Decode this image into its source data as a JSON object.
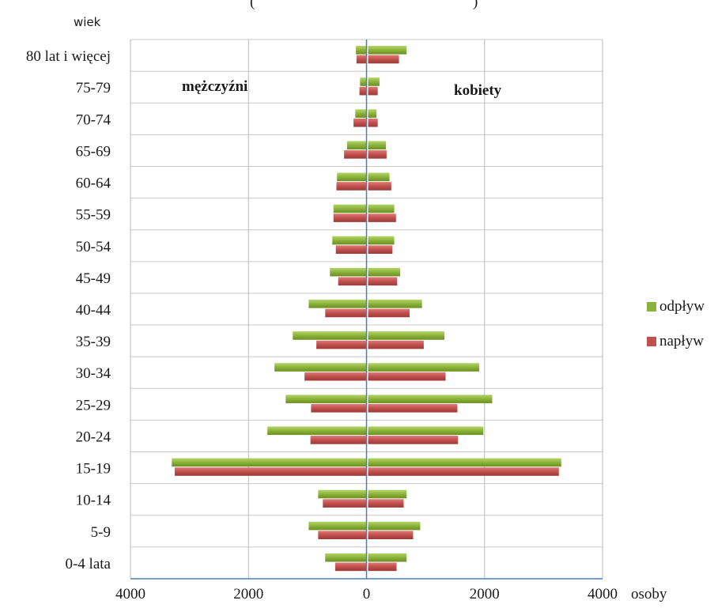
{
  "chart_data": {
    "type": "bar",
    "orientation": "horizontal",
    "title_fragment_left": "(",
    "title_fragment_right": ")",
    "ylabel": "wiek",
    "xlabel": "osoby",
    "xlim": [
      -4000,
      4000
    ],
    "x_ticks": [
      -4000,
      -2000,
      0,
      2000,
      4000
    ],
    "x_tick_labels": [
      "4000",
      "2000",
      "0",
      "2000",
      "4000"
    ],
    "grid": true,
    "legend_position": "right",
    "annotations": {
      "left": "mężczyźni",
      "right": "kobiety"
    },
    "categories": [
      "0-4 lata",
      "5-9",
      "10-14",
      "15-19",
      "20-24",
      "25-29",
      "30-34",
      "35-39",
      "40-44",
      "45-49",
      "50-54",
      "55-59",
      "60-64",
      "65-69",
      "70-74",
      "75-79",
      "80 lat i więcej"
    ],
    "series": [
      {
        "name": "odpływ",
        "color": "#8bb33a",
        "men": [
          -700,
          -980,
          -820,
          -3300,
          -1680,
          -1370,
          -1560,
          -1250,
          -980,
          -620,
          -580,
          -560,
          -500,
          -330,
          -190,
          -110,
          -180
        ],
        "women": [
          680,
          910,
          680,
          3300,
          1980,
          2130,
          1910,
          1320,
          940,
          570,
          470,
          470,
          390,
          330,
          170,
          220,
          680
        ]
      },
      {
        "name": "napływ",
        "color": "#c0504d",
        "men": [
          -530,
          -820,
          -740,
          -3250,
          -950,
          -940,
          -1050,
          -850,
          -700,
          -480,
          -520,
          -560,
          -510,
          -380,
          -220,
          -120,
          -170
        ],
        "women": [
          510,
          790,
          630,
          3260,
          1550,
          1540,
          1340,
          970,
          730,
          520,
          440,
          500,
          420,
          340,
          190,
          190,
          550
        ]
      }
    ]
  }
}
